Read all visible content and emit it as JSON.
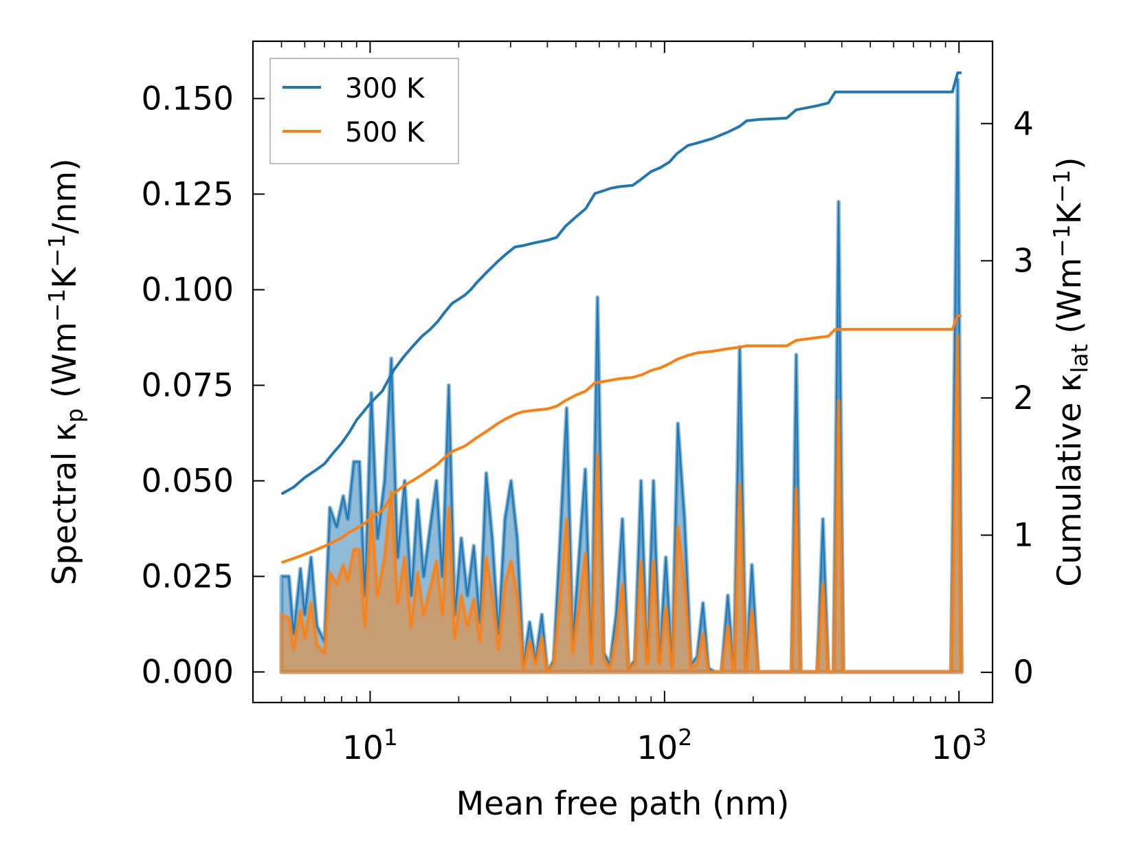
{
  "chart_data": {
    "type": "line",
    "title": "",
    "xlabel": "Mean free path (nm)",
    "xscale": "log",
    "xlim": [
      4,
      1300
    ],
    "x_ticks": [
      {
        "value": 10,
        "base": "10",
        "exp": "1"
      },
      {
        "value": 100,
        "base": "10",
        "exp": "2"
      },
      {
        "value": 1000,
        "base": "10",
        "exp": "3"
      }
    ],
    "ylabel_left": {
      "prefix": "Spectral κ",
      "sub": "p",
      "unit_open": " (Wm",
      "sup1": "−1",
      "unit_mid": "K",
      "sup2": "−1",
      "unit_close": "/nm)"
    },
    "ylim_left": [
      -0.008,
      0.165
    ],
    "yticks_left": [
      "0.000",
      "0.025",
      "0.050",
      "0.075",
      "0.100",
      "0.125",
      "0.150"
    ],
    "ylabel_right": {
      "prefix": "Cumulative κ",
      "sub": "lat",
      "unit_open": " (Wm",
      "sup1": "−1",
      "unit_mid": "K",
      "sup2": "−1",
      "unit_close": ")"
    },
    "ylim_right": [
      -0.22,
      4.6
    ],
    "yticks_right": [
      "0",
      "1",
      "2",
      "3",
      "4"
    ],
    "legend": {
      "position": "upper-left",
      "entries": [
        {
          "label": "300 K",
          "color": "#1f77b4"
        },
        {
          "label": "500 K",
          "color": "#ff7f0e"
        }
      ]
    },
    "series": [
      {
        "name": "300 K",
        "color": "#1f77b4",
        "spectral": [
          [
            5,
            0.025
          ],
          [
            5.3,
            0.025
          ],
          [
            5.5,
            0.01
          ],
          [
            5.8,
            0.027
          ],
          [
            6,
            0.015
          ],
          [
            6.3,
            0.03
          ],
          [
            6.6,
            0.012
          ],
          [
            7,
            0.008
          ],
          [
            7.3,
            0.043
          ],
          [
            7.7,
            0.038
          ],
          [
            8.1,
            0.046
          ],
          [
            8.4,
            0.04
          ],
          [
            8.8,
            0.055
          ],
          [
            9.2,
            0.055
          ],
          [
            9.6,
            0.02
          ],
          [
            10.1,
            0.073
          ],
          [
            10.6,
            0.035
          ],
          [
            11.2,
            0.05
          ],
          [
            11.8,
            0.082
          ],
          [
            12.4,
            0.03
          ],
          [
            13.1,
            0.05
          ],
          [
            13.8,
            0.02
          ],
          [
            14.5,
            0.045
          ],
          [
            15.2,
            0.025
          ],
          [
            16,
            0.038
          ],
          [
            16.8,
            0.05
          ],
          [
            17.6,
            0.025
          ],
          [
            18.5,
            0.075
          ],
          [
            19.4,
            0.015
          ],
          [
            20.4,
            0.035
          ],
          [
            21.4,
            0.02
          ],
          [
            22.5,
            0.033
          ],
          [
            23.6,
            0.013
          ],
          [
            24.8,
            0.052
          ],
          [
            26,
            0.035
          ],
          [
            27.3,
            0.01
          ],
          [
            28.7,
            0.04
          ],
          [
            30.1,
            0.05
          ],
          [
            31.6,
            0.035
          ],
          [
            33.2,
            0.002
          ],
          [
            34.8,
            0.013
          ],
          [
            36.5,
            0.003
          ],
          [
            38.3,
            0.015
          ],
          [
            40,
            0
          ],
          [
            42,
            0.003
          ],
          [
            44,
            0.032
          ],
          [
            46.5,
            0.069
          ],
          [
            48.8,
            0.008
          ],
          [
            51.2,
            0.03
          ],
          [
            53.8,
            0.053
          ],
          [
            56.4,
            0.003
          ],
          [
            59.2,
            0.098
          ],
          [
            62.2,
            0.005
          ],
          [
            65.2,
            0.002
          ],
          [
            68.5,
            0.015
          ],
          [
            71.9,
            0.04
          ],
          [
            75.5,
            0.001
          ],
          [
            79.2,
            0.003
          ],
          [
            83.2,
            0.05
          ],
          [
            87.3,
            0.003
          ],
          [
            91.7,
            0.05
          ],
          [
            96.2,
            0.003
          ],
          [
            101,
            0.03
          ],
          [
            106,
            0.002
          ],
          [
            111,
            0.065
          ],
          [
            117,
            0.04
          ],
          [
            123,
            0.002
          ],
          [
            129,
            0.004
          ],
          [
            135,
            0.018
          ],
          [
            141,
            0.001
          ],
          [
            148,
            0
          ],
          [
            156,
            0
          ],
          [
            164,
            0.02
          ],
          [
            172,
            0
          ],
          [
            180,
            0.085
          ],
          [
            189,
            0
          ],
          [
            198,
            0.028
          ],
          [
            208,
            0
          ],
          [
            270,
            0
          ],
          [
            280,
            0.083
          ],
          [
            290,
            0
          ],
          [
            330,
            0
          ],
          [
            345,
            0.04
          ],
          [
            360,
            0
          ],
          [
            375,
            0
          ],
          [
            390,
            0.123
          ],
          [
            405,
            0
          ],
          [
            940,
            0
          ],
          [
            990,
            0.155
          ],
          [
            1020,
            0
          ]
        ],
        "cumulative": [
          [
            5,
            1.3
          ],
          [
            5.5,
            1.35
          ],
          [
            6,
            1.42
          ],
          [
            6.5,
            1.47
          ],
          [
            7,
            1.52
          ],
          [
            7.5,
            1.6
          ],
          [
            8,
            1.67
          ],
          [
            8.5,
            1.75
          ],
          [
            9,
            1.84
          ],
          [
            9.5,
            1.9
          ],
          [
            10,
            1.96
          ],
          [
            11,
            2.05
          ],
          [
            12,
            2.2
          ],
          [
            13,
            2.3
          ],
          [
            14,
            2.38
          ],
          [
            15,
            2.45
          ],
          [
            16,
            2.5
          ],
          [
            17,
            2.56
          ],
          [
            18,
            2.63
          ],
          [
            19,
            2.69
          ],
          [
            20,
            2.72
          ],
          [
            21,
            2.75
          ],
          [
            22,
            2.79
          ],
          [
            23,
            2.84
          ],
          [
            25,
            2.92
          ],
          [
            27,
            2.99
          ],
          [
            29,
            3.05
          ],
          [
            31,
            3.1
          ],
          [
            33,
            3.11
          ],
          [
            36,
            3.13
          ],
          [
            40,
            3.15
          ],
          [
            43,
            3.17
          ],
          [
            46,
            3.25
          ],
          [
            50,
            3.32
          ],
          [
            54,
            3.38
          ],
          [
            58,
            3.49
          ],
          [
            62,
            3.51
          ],
          [
            66,
            3.53
          ],
          [
            70,
            3.54
          ],
          [
            78,
            3.55
          ],
          [
            84,
            3.6
          ],
          [
            90,
            3.65
          ],
          [
            97,
            3.68
          ],
          [
            104,
            3.72
          ],
          [
            110,
            3.78
          ],
          [
            120,
            3.84
          ],
          [
            130,
            3.86
          ],
          [
            145,
            3.89
          ],
          [
            165,
            3.94
          ],
          [
            180,
            3.98
          ],
          [
            190,
            4.02
          ],
          [
            210,
            4.03
          ],
          [
            260,
            4.04
          ],
          [
            280,
            4.1
          ],
          [
            330,
            4.13
          ],
          [
            360,
            4.15
          ],
          [
            380,
            4.23
          ],
          [
            950,
            4.23
          ],
          [
            990,
            4.37
          ],
          [
            1020,
            4.37
          ]
        ]
      },
      {
        "name": "500 K",
        "color": "#ff7f0e",
        "spectral": [
          [
            5,
            0.015
          ],
          [
            5.3,
            0.014
          ],
          [
            5.5,
            0.006
          ],
          [
            5.8,
            0.016
          ],
          [
            6,
            0.009
          ],
          [
            6.3,
            0.018
          ],
          [
            6.6,
            0.007
          ],
          [
            7,
            0.005
          ],
          [
            7.3,
            0.026
          ],
          [
            7.7,
            0.023
          ],
          [
            8.1,
            0.028
          ],
          [
            8.4,
            0.024
          ],
          [
            8.8,
            0.032
          ],
          [
            9.2,
            0.032
          ],
          [
            9.6,
            0.012
          ],
          [
            10.1,
            0.042
          ],
          [
            10.6,
            0.02
          ],
          [
            11.2,
            0.03
          ],
          [
            11.8,
            0.047
          ],
          [
            12.4,
            0.018
          ],
          [
            13.1,
            0.03
          ],
          [
            13.8,
            0.012
          ],
          [
            14.5,
            0.026
          ],
          [
            15.2,
            0.015
          ],
          [
            16,
            0.022
          ],
          [
            16.8,
            0.029
          ],
          [
            17.6,
            0.015
          ],
          [
            18.5,
            0.043
          ],
          [
            19.4,
            0.009
          ],
          [
            20.4,
            0.02
          ],
          [
            21.4,
            0.012
          ],
          [
            22.5,
            0.019
          ],
          [
            23.6,
            0.008
          ],
          [
            24.8,
            0.03
          ],
          [
            26,
            0.02
          ],
          [
            27.3,
            0.006
          ],
          [
            28.7,
            0.023
          ],
          [
            30.1,
            0.029
          ],
          [
            31.6,
            0.02
          ],
          [
            33.2,
            0.001
          ],
          [
            34.8,
            0.008
          ],
          [
            36.5,
            0.002
          ],
          [
            38.3,
            0.009
          ],
          [
            40,
            0
          ],
          [
            42,
            0.002
          ],
          [
            44,
            0.018
          ],
          [
            46.5,
            0.04
          ],
          [
            48.8,
            0.005
          ],
          [
            51.2,
            0.017
          ],
          [
            53.8,
            0.031
          ],
          [
            56.4,
            0.002
          ],
          [
            59.2,
            0.057
          ],
          [
            62.2,
            0.003
          ],
          [
            65.2,
            0.001
          ],
          [
            68.5,
            0.009
          ],
          [
            71.9,
            0.023
          ],
          [
            75.5,
            0.001
          ],
          [
            79.2,
            0.002
          ],
          [
            83.2,
            0.029
          ],
          [
            87.3,
            0.002
          ],
          [
            91.7,
            0.029
          ],
          [
            96.2,
            0.002
          ],
          [
            101,
            0.017
          ],
          [
            106,
            0.001
          ],
          [
            111,
            0.038
          ],
          [
            117,
            0.023
          ],
          [
            123,
            0.001
          ],
          [
            129,
            0.002
          ],
          [
            135,
            0.01
          ],
          [
            141,
            0
          ],
          [
            148,
            0
          ],
          [
            156,
            0
          ],
          [
            164,
            0.012
          ],
          [
            172,
            0
          ],
          [
            180,
            0.049
          ],
          [
            189,
            0
          ],
          [
            198,
            0.016
          ],
          [
            208,
            0
          ],
          [
            270,
            0
          ],
          [
            280,
            0.048
          ],
          [
            290,
            0
          ],
          [
            330,
            0
          ],
          [
            345,
            0.023
          ],
          [
            360,
            0
          ],
          [
            375,
            0
          ],
          [
            390,
            0.071
          ],
          [
            405,
            0
          ],
          [
            940,
            0
          ],
          [
            990,
            0.088
          ],
          [
            1020,
            0
          ]
        ],
        "cumulative": [
          [
            5,
            0.8
          ],
          [
            5.5,
            0.83
          ],
          [
            6,
            0.86
          ],
          [
            6.5,
            0.89
          ],
          [
            7,
            0.92
          ],
          [
            7.5,
            0.95
          ],
          [
            8,
            0.98
          ],
          [
            8.5,
            1.02
          ],
          [
            9,
            1.05
          ],
          [
            9.5,
            1.08
          ],
          [
            10,
            1.12
          ],
          [
            11,
            1.18
          ],
          [
            12,
            1.3
          ],
          [
            13,
            1.36
          ],
          [
            14,
            1.4
          ],
          [
            15,
            1.44
          ],
          [
            16,
            1.48
          ],
          [
            17,
            1.52
          ],
          [
            18,
            1.57
          ],
          [
            19,
            1.61
          ],
          [
            20,
            1.63
          ],
          [
            21,
            1.65
          ],
          [
            22,
            1.68
          ],
          [
            23,
            1.71
          ],
          [
            25,
            1.76
          ],
          [
            27,
            1.81
          ],
          [
            29,
            1.85
          ],
          [
            31,
            1.88
          ],
          [
            33,
            1.9
          ],
          [
            36,
            1.91
          ],
          [
            40,
            1.92
          ],
          [
            43,
            1.94
          ],
          [
            46,
            1.98
          ],
          [
            50,
            2.02
          ],
          [
            54,
            2.05
          ],
          [
            58,
            2.11
          ],
          [
            62,
            2.12
          ],
          [
            66,
            2.13
          ],
          [
            70,
            2.14
          ],
          [
            78,
            2.15
          ],
          [
            84,
            2.17
          ],
          [
            90,
            2.2
          ],
          [
            97,
            2.22
          ],
          [
            104,
            2.25
          ],
          [
            110,
            2.28
          ],
          [
            120,
            2.31
          ],
          [
            130,
            2.33
          ],
          [
            145,
            2.34
          ],
          [
            165,
            2.36
          ],
          [
            180,
            2.37
          ],
          [
            190,
            2.38
          ],
          [
            210,
            2.38
          ],
          [
            260,
            2.38
          ],
          [
            280,
            2.42
          ],
          [
            330,
            2.44
          ],
          [
            360,
            2.45
          ],
          [
            380,
            2.5
          ],
          [
            950,
            2.5
          ],
          [
            990,
            2.6
          ],
          [
            1020,
            2.6
          ]
        ]
      }
    ]
  }
}
